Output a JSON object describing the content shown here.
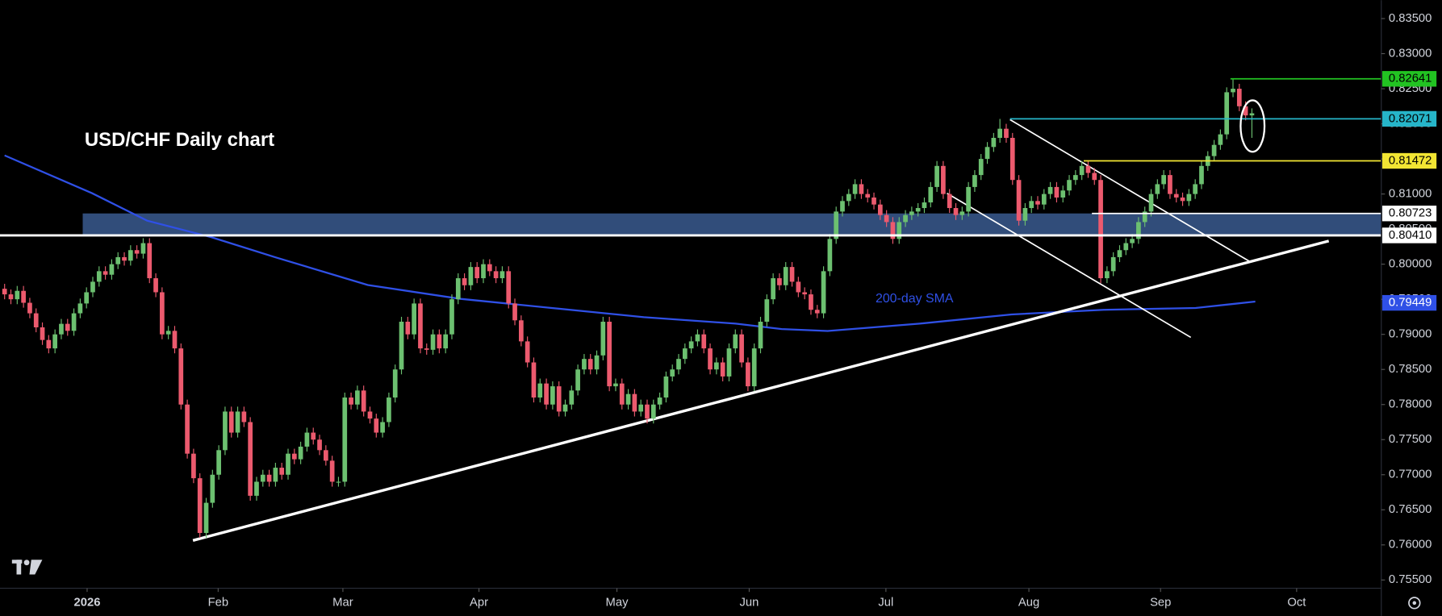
{
  "chart_data": {
    "type": "candlestick",
    "title": "USD/CHF Daily chart",
    "up_color": "#6cc070",
    "down_color": "#ec5a6e",
    "xlim": [
      -0.73,
      218.54
    ],
    "ylim": [
      0.75382,
      0.83762
    ],
    "xticks": [
      {
        "value": 13.1,
        "label": "2026"
      },
      {
        "value": 33.9,
        "label": "Feb"
      },
      {
        "value": 53.7,
        "label": "Mar"
      },
      {
        "value": 75.3,
        "label": "Apr"
      },
      {
        "value": 97.2,
        "label": "May"
      },
      {
        "value": 118.2,
        "label": "Jun"
      },
      {
        "value": 139.9,
        "label": "Jul"
      },
      {
        "value": 162.6,
        "label": "Aug"
      },
      {
        "value": 183.5,
        "label": "Sep"
      },
      {
        "value": 205.1,
        "label": "Oct"
      }
    ],
    "yticks": [
      {
        "value": 0.755,
        "label": "0.75500"
      },
      {
        "value": 0.76,
        "label": "0.76000"
      },
      {
        "value": 0.765,
        "label": "0.76500"
      },
      {
        "value": 0.77,
        "label": "0.77000"
      },
      {
        "value": 0.775,
        "label": "0.77500"
      },
      {
        "value": 0.78,
        "label": "0.78000"
      },
      {
        "value": 0.785,
        "label": "0.78500"
      },
      {
        "value": 0.79,
        "label": "0.79000"
      },
      {
        "value": 0.795,
        "label": "0.79500"
      },
      {
        "value": 0.8,
        "label": "0.80000"
      },
      {
        "value": 0.805,
        "label": "0.80500"
      },
      {
        "value": 0.81,
        "label": "0.81000"
      },
      {
        "value": 0.815,
        "label": "0.81500"
      },
      {
        "value": 0.82,
        "label": "0.82000"
      },
      {
        "value": 0.825,
        "label": "0.82500"
      },
      {
        "value": 0.83,
        "label": "0.83000"
      },
      {
        "value": 0.835,
        "label": "0.83500"
      }
    ],
    "open": [
      0.7965,
      0.7957,
      0.795,
      0.7962,
      0.7945,
      0.793,
      0.791,
      0.7892,
      0.788,
      0.79,
      0.7915,
      0.7905,
      0.793,
      0.7944,
      0.796,
      0.7975,
      0.799,
      0.7985,
      0.8,
      0.801,
      0.8005,
      0.802,
      0.8015,
      0.803,
      0.798,
      0.796,
      0.79,
      0.7905,
      0.788,
      0.78,
      0.773,
      0.7695,
      0.7617,
      0.766,
      0.77,
      0.7735,
      0.779,
      0.776,
      0.779,
      0.7775,
      0.767,
      0.769,
      0.77,
      0.769,
      0.771,
      0.77,
      0.773,
      0.7722,
      0.774,
      0.776,
      0.775,
      0.7735,
      0.772,
      0.769,
      0.769,
      0.781,
      0.78,
      0.782,
      0.779,
      0.778,
      0.776,
      0.7775,
      0.781,
      0.785,
      0.7918,
      0.79,
      0.7944,
      0.788,
      0.7878,
      0.79,
      0.788,
      0.79,
      0.795,
      0.798,
      0.797,
      0.7996,
      0.798,
      0.8,
      0.799,
      0.798,
      0.799,
      0.7944,
      0.792,
      0.789,
      0.786,
      0.781,
      0.783,
      0.78,
      0.7826,
      0.779,
      0.78,
      0.782,
      0.785,
      0.7865,
      0.785,
      0.787,
      0.7918,
      0.7826,
      0.783,
      0.78,
      0.7815,
      0.779,
      0.78,
      0.778,
      0.78,
      0.781,
      0.784,
      0.785,
      0.7865,
      0.788,
      0.789,
      0.79,
      0.788,
      0.785,
      0.786,
      0.784,
      0.788,
      0.79,
      0.786,
      0.7826,
      0.788,
      0.7918,
      0.795,
      0.798,
      0.797,
      0.7996,
      0.7975,
      0.796,
      0.7957,
      0.7935,
      0.793,
      0.799,
      0.8036,
      0.8075,
      0.809,
      0.81,
      0.8114,
      0.81,
      0.8095,
      0.8085,
      0.807,
      0.806,
      0.8036,
      0.806,
      0.807,
      0.8075,
      0.808,
      0.8088,
      0.811,
      0.814,
      0.81,
      0.808,
      0.807,
      0.8075,
      0.811,
      0.8127,
      0.815,
      0.8167,
      0.818,
      0.8193,
      0.818,
      0.812,
      0.8062,
      0.808,
      0.809,
      0.8085,
      0.81,
      0.811,
      0.8095,
      0.8105,
      0.812,
      0.8127,
      0.814,
      0.813,
      0.812,
      0.798,
      0.799,
      0.801,
      0.802,
      0.803,
      0.8036,
      0.806,
      0.8075,
      0.81,
      0.8114,
      0.8127,
      0.81,
      0.8095,
      0.809,
      0.81,
      0.8114,
      0.814,
      0.8154,
      0.817,
      0.8185,
      0.8245,
      0.825,
      0.8225,
      0.8212
    ],
    "high": [
      0.7972,
      0.7964,
      0.7969,
      0.7969,
      0.7952,
      0.7937,
      0.7917,
      0.7899,
      0.7907,
      0.7922,
      0.7922,
      0.7937,
      0.7951,
      0.7967,
      0.7982,
      0.7997,
      0.7997,
      0.8007,
      0.8017,
      0.8017,
      0.8027,
      0.8027,
      0.8037,
      0.8037,
      0.7987,
      0.7967,
      0.7912,
      0.7912,
      0.7887,
      0.7807,
      0.7737,
      0.7702,
      0.7667,
      0.7707,
      0.7742,
      0.7797,
      0.7797,
      0.7797,
      0.7797,
      0.7782,
      0.7697,
      0.7707,
      0.7707,
      0.7717,
      0.7717,
      0.7737,
      0.7737,
      0.7747,
      0.7767,
      0.7767,
      0.7757,
      0.7742,
      0.7727,
      0.7697,
      0.7817,
      0.7817,
      0.7827,
      0.7827,
      0.7797,
      0.7787,
      0.7782,
      0.7817,
      0.7857,
      0.7925,
      0.7925,
      0.7951,
      0.7951,
      0.7887,
      0.7907,
      0.7907,
      0.7907,
      0.7957,
      0.7987,
      0.7987,
      0.8003,
      0.8003,
      0.8007,
      0.8007,
      0.7997,
      0.7997,
      0.7997,
      0.7951,
      0.7927,
      0.7897,
      0.7867,
      0.7837,
      0.7837,
      0.7833,
      0.7833,
      0.7807,
      0.7827,
      0.7857,
      0.7872,
      0.7872,
      0.7877,
      0.7925,
      0.7925,
      0.7837,
      0.7837,
      0.7822,
      0.7822,
      0.7807,
      0.7807,
      0.7807,
      0.7817,
      0.7847,
      0.7857,
      0.7872,
      0.7887,
      0.7897,
      0.7907,
      0.7907,
      0.7887,
      0.7867,
      0.7867,
      0.7887,
      0.7907,
      0.7907,
      0.7867,
      0.7887,
      0.7925,
      0.7957,
      0.7987,
      0.7987,
      0.8003,
      0.8003,
      0.7982,
      0.7967,
      0.7964,
      0.7942,
      0.7997,
      0.8043,
      0.8082,
      0.8097,
      0.8107,
      0.8121,
      0.8121,
      0.8107,
      0.8102,
      0.8092,
      0.8077,
      0.8067,
      0.8067,
      0.8077,
      0.8082,
      0.8087,
      0.8095,
      0.8117,
      0.8147,
      0.8147,
      0.8107,
      0.8087,
      0.8082,
      0.8117,
      0.8134,
      0.8157,
      0.8174,
      0.8187,
      0.8207,
      0.82,
      0.8187,
      0.8127,
      0.8087,
      0.8097,
      0.8097,
      0.8107,
      0.8117,
      0.8117,
      0.8112,
      0.8127,
      0.8134,
      0.8147,
      0.8147,
      0.8137,
      0.8127,
      0.7997,
      0.8017,
      0.8027,
      0.8037,
      0.8043,
      0.8067,
      0.8082,
      0.8107,
      0.8121,
      0.8134,
      0.8134,
      0.8107,
      0.8102,
      0.8107,
      0.8121,
      0.8147,
      0.8161,
      0.8177,
      0.8192,
      0.8252,
      0.8264,
      0.8257,
      0.8232,
      0.8222
    ],
    "low": [
      0.795,
      0.7943,
      0.7943,
      0.7938,
      0.7923,
      0.7903,
      0.7885,
      0.7873,
      0.7873,
      0.7893,
      0.7898,
      0.7898,
      0.7923,
      0.7937,
      0.7953,
      0.7968,
      0.7978,
      0.7978,
      0.7993,
      0.7998,
      0.7998,
      0.8008,
      0.8008,
      0.7973,
      0.7953,
      0.7893,
      0.7893,
      0.7873,
      0.7793,
      0.7723,
      0.7688,
      0.761,
      0.761,
      0.7653,
      0.7693,
      0.7728,
      0.7753,
      0.7753,
      0.7768,
      0.7663,
      0.7663,
      0.7683,
      0.7683,
      0.7683,
      0.7693,
      0.7693,
      0.7715,
      0.7715,
      0.7733,
      0.7743,
      0.7728,
      0.7713,
      0.7683,
      0.7683,
      0.7683,
      0.7793,
      0.7793,
      0.7783,
      0.7773,
      0.7753,
      0.7753,
      0.7768,
      0.7803,
      0.7843,
      0.7893,
      0.7893,
      0.7873,
      0.7871,
      0.7871,
      0.7873,
      0.7873,
      0.7893,
      0.7943,
      0.7963,
      0.7963,
      0.7973,
      0.7973,
      0.7983,
      0.7973,
      0.7973,
      0.7937,
      0.7913,
      0.7883,
      0.7853,
      0.7803,
      0.7803,
      0.7793,
      0.7793,
      0.7783,
      0.7783,
      0.7793,
      0.7813,
      0.7843,
      0.7843,
      0.7843,
      0.7863,
      0.7819,
      0.7819,
      0.7793,
      0.7793,
      0.7783,
      0.7783,
      0.7773,
      0.7773,
      0.7793,
      0.7803,
      0.7833,
      0.7843,
      0.7858,
      0.7873,
      0.7883,
      0.7873,
      0.7843,
      0.7843,
      0.7833,
      0.7833,
      0.7873,
      0.7853,
      0.7819,
      0.7819,
      0.7873,
      0.7911,
      0.7943,
      0.7963,
      0.7963,
      0.7968,
      0.7953,
      0.795,
      0.7928,
      0.7923,
      0.7923,
      0.7983,
      0.8029,
      0.8068,
      0.8083,
      0.8093,
      0.8093,
      0.8088,
      0.8078,
      0.8063,
      0.8053,
      0.8029,
      0.8029,
      0.8053,
      0.8063,
      0.8068,
      0.8073,
      0.8081,
      0.8103,
      0.8093,
      0.8073,
      0.8063,
      0.8063,
      0.8068,
      0.8103,
      0.812,
      0.8143,
      0.816,
      0.8173,
      0.8173,
      0.8113,
      0.8055,
      0.8055,
      0.8073,
      0.8078,
      0.8078,
      0.8093,
      0.8088,
      0.8088,
      0.8098,
      0.8113,
      0.812,
      0.8123,
      0.8113,
      0.7973,
      0.7973,
      0.7983,
      0.8003,
      0.8013,
      0.8023,
      0.8029,
      0.8053,
      0.8068,
      0.8093,
      0.8107,
      0.8093,
      0.8088,
      0.8083,
      0.8083,
      0.8093,
      0.8107,
      0.8133,
      0.8147,
      0.8163,
      0.8178,
      0.8238,
      0.8218,
      0.8205,
      0.818
    ],
    "close": [
      0.7957,
      0.795,
      0.7962,
      0.7945,
      0.793,
      0.791,
      0.7892,
      0.788,
      0.79,
      0.7915,
      0.7905,
      0.793,
      0.7944,
      0.796,
      0.7975,
      0.799,
      0.7985,
      0.8,
      0.801,
      0.8005,
      0.802,
      0.8015,
      0.803,
      0.798,
      0.796,
      0.79,
      0.7905,
      0.788,
      0.78,
      0.773,
      0.7695,
      0.7617,
      0.766,
      0.77,
      0.7735,
      0.779,
      0.776,
      0.779,
      0.7775,
      0.767,
      0.769,
      0.77,
      0.769,
      0.771,
      0.77,
      0.773,
      0.7722,
      0.774,
      0.776,
      0.775,
      0.7735,
      0.772,
      0.769,
      0.769,
      0.781,
      0.78,
      0.782,
      0.779,
      0.778,
      0.776,
      0.7775,
      0.781,
      0.785,
      0.7918,
      0.79,
      0.7944,
      0.788,
      0.7878,
      0.79,
      0.788,
      0.79,
      0.795,
      0.798,
      0.797,
      0.7996,
      0.798,
      0.8,
      0.799,
      0.798,
      0.799,
      0.7944,
      0.792,
      0.789,
      0.786,
      0.781,
      0.783,
      0.78,
      0.7826,
      0.779,
      0.78,
      0.782,
      0.785,
      0.7865,
      0.785,
      0.787,
      0.7918,
      0.7826,
      0.783,
      0.78,
      0.7815,
      0.779,
      0.78,
      0.778,
      0.78,
      0.781,
      0.784,
      0.785,
      0.7865,
      0.788,
      0.789,
      0.79,
      0.788,
      0.785,
      0.786,
      0.784,
      0.788,
      0.79,
      0.786,
      0.7826,
      0.788,
      0.7918,
      0.795,
      0.798,
      0.797,
      0.7996,
      0.7975,
      0.796,
      0.7957,
      0.7935,
      0.793,
      0.799,
      0.8036,
      0.8075,
      0.809,
      0.81,
      0.8114,
      0.81,
      0.8095,
      0.8085,
      0.807,
      0.806,
      0.8036,
      0.806,
      0.807,
      0.8075,
      0.808,
      0.8088,
      0.811,
      0.814,
      0.81,
      0.808,
      0.807,
      0.8075,
      0.811,
      0.8127,
      0.815,
      0.8167,
      0.818,
      0.8193,
      0.818,
      0.812,
      0.8062,
      0.808,
      0.809,
      0.8085,
      0.81,
      0.811,
      0.8095,
      0.8105,
      0.812,
      0.8127,
      0.814,
      0.813,
      0.812,
      0.798,
      0.799,
      0.801,
      0.802,
      0.803,
      0.8036,
      0.806,
      0.8075,
      0.81,
      0.8114,
      0.8127,
      0.81,
      0.8095,
      0.809,
      0.81,
      0.8114,
      0.814,
      0.8154,
      0.817,
      0.8185,
      0.8245,
      0.825,
      0.8225,
      0.8212,
      0.8215
    ],
    "zone": {
      "x_start": 12.4,
      "ymin": 0.8041,
      "ymax": 0.80723,
      "color": "#3a5a8f"
    },
    "sma": {
      "name": "200-day SMA",
      "color": "#2f50e6",
      "last": 0.79449,
      "x": [
        0,
        13.87,
        22.63,
        32.85,
        43.07,
        57.66,
        72.26,
        86.86,
        101.46,
        116.06,
        123.36,
        130.66,
        145.26,
        159.85,
        174.45,
        189.05,
        198.54
      ],
      "values": [
        0.8155,
        0.81012,
        0.8062,
        0.80384,
        0.80096,
        0.79703,
        0.79507,
        0.79376,
        0.79245,
        0.79153,
        0.79075,
        0.79048,
        0.79153,
        0.79284,
        0.7935,
        0.79376,
        0.79467
      ]
    },
    "trendlines": [
      {
        "x": [
          29.9,
          210.2
        ],
        "values": [
          0.76063,
          0.80331
        ],
        "color": "#ffffff",
        "width": 3
      },
      {
        "x": [
          159.6,
          197.8
        ],
        "values": [
          0.8206,
          0.8003
        ],
        "color": "#ffffff",
        "width": 1.5
      },
      {
        "x": [
          149.6,
          188.3
        ],
        "values": [
          0.8101,
          0.78957
        ],
        "color": "#ffffff",
        "width": 1.5
      }
    ],
    "levels": [
      {
        "value": 0.82641,
        "color": "#22c322",
        "from": 194.6,
        "width": 1.5
      },
      {
        "value": 0.82071,
        "color": "#26b5c9",
        "from": 159.6,
        "width": 1.5
      },
      {
        "value": 0.81472,
        "color": "#f2e533",
        "from": 171.3,
        "width": 1.5
      },
      {
        "value": 0.80723,
        "color": "#ffffff",
        "from": 172.6,
        "width": 1.5
      },
      {
        "value": 0.8041,
        "label": "0.80410",
        "color": "#ffffff",
        "width": 2.5
      }
    ]
  }
}
